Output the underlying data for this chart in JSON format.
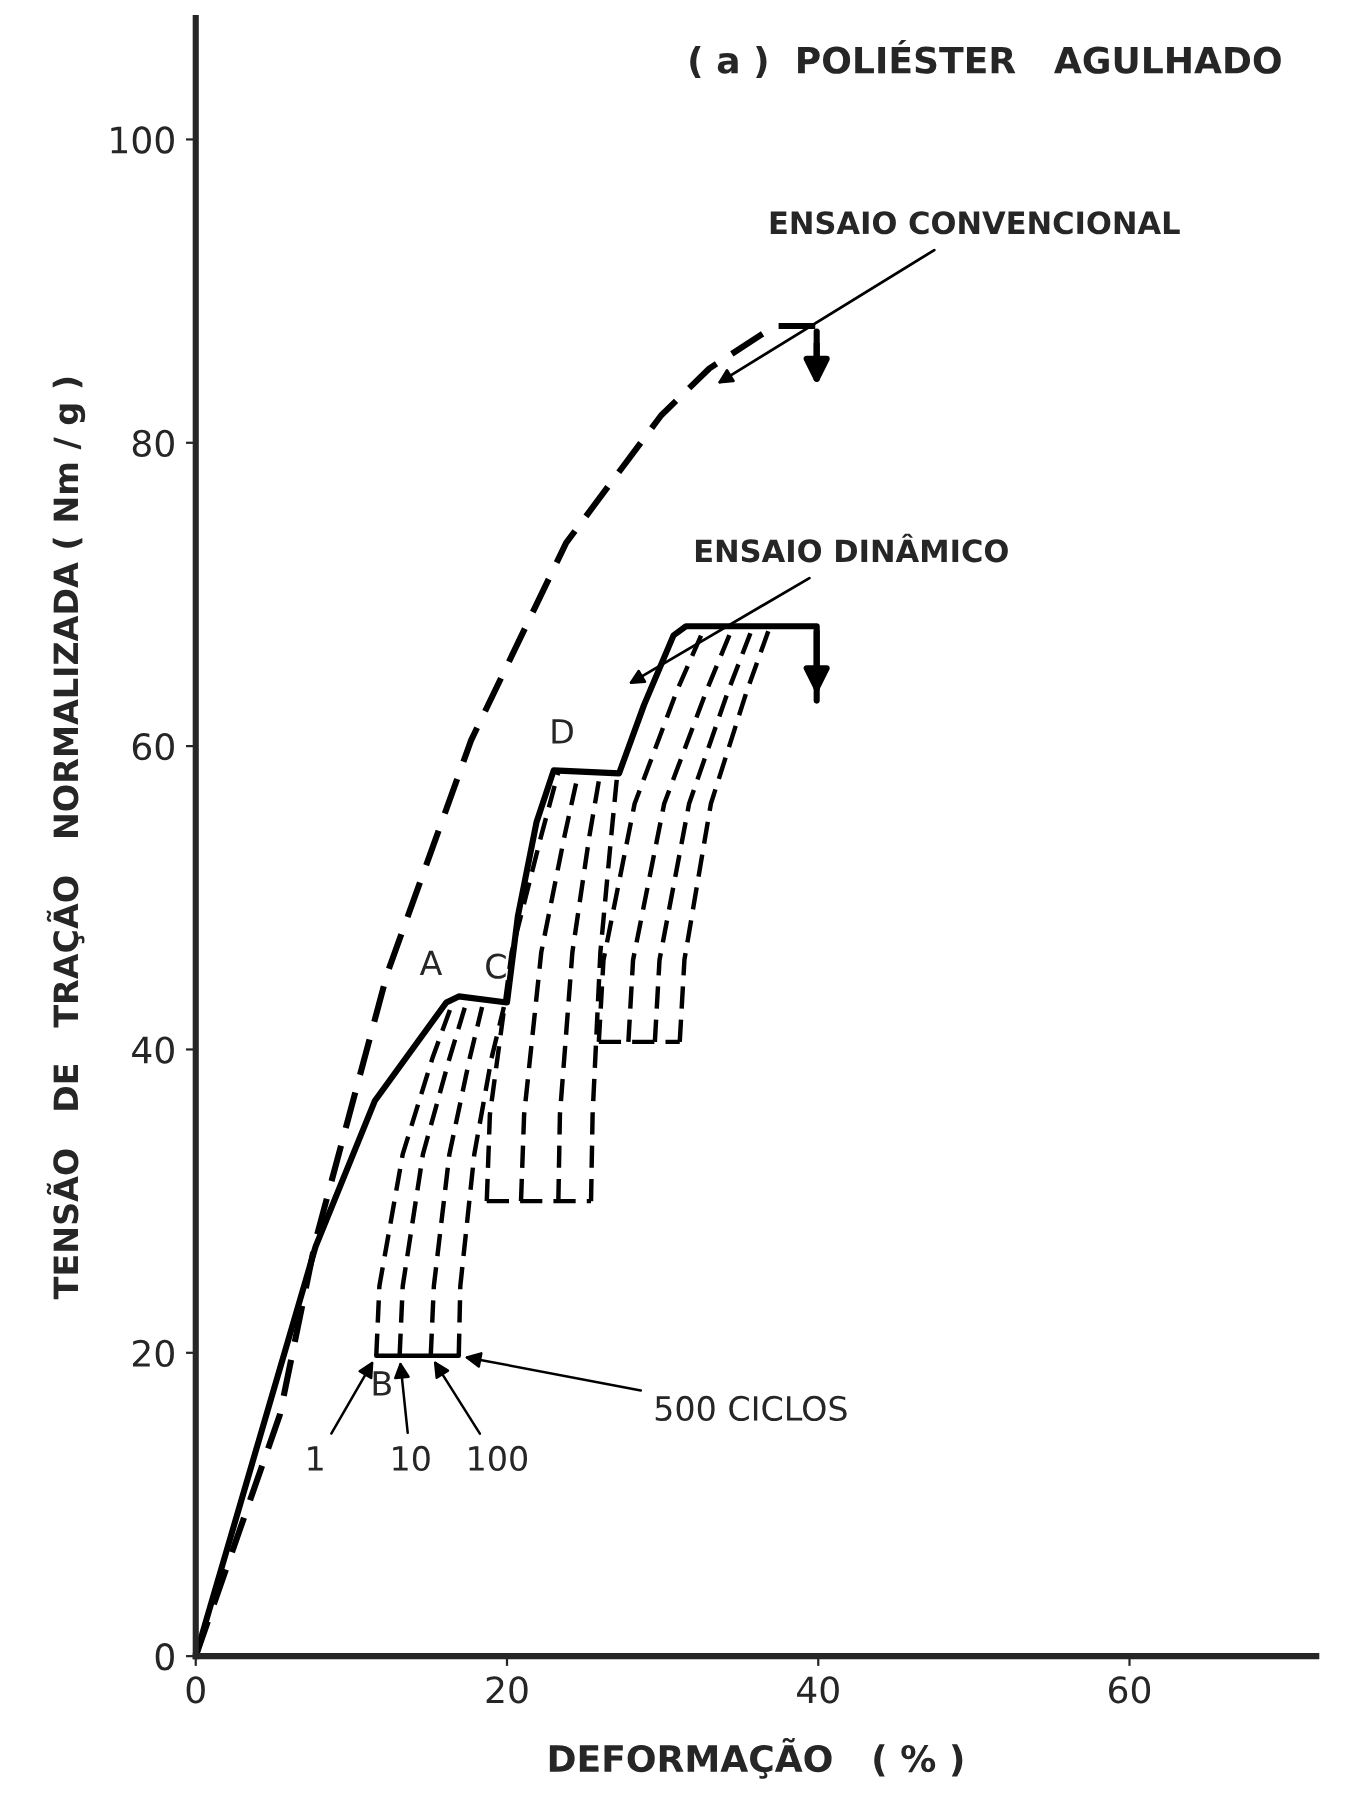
{
  "chart_data": {
    "type": "line",
    "title": "( a )  POLIÉSTER   AGULHADO",
    "xlabel": "DEFORMAÇÃO   ( % )",
    "ylabel": "TENSÃO   DE   TRAÇÃO   NORMALIZADA ( Nm / g )",
    "xlim": [
      0,
      72
    ],
    "ylim": [
      0,
      108
    ],
    "xticks": [
      0,
      20,
      40,
      60
    ],
    "yticks": [
      0,
      20,
      40,
      60,
      80,
      100
    ],
    "grid": false,
    "color": "#000000",
    "series": [
      {
        "name": "ENSAIO CONVENCIONAL",
        "line_style": "dashed",
        "x": [
          0,
          5.4,
          7.7,
          12.3,
          17.7,
          23.8,
          29.9,
          33,
          37.2,
          39.9,
          39.9
        ],
        "values": [
          0,
          15.9,
          27.4,
          45,
          60.4,
          73.4,
          81.8,
          84.9,
          87.7,
          87.7,
          83.4
        ]
      },
      {
        "name": "ENSAIO DINÂMICO",
        "line_style": "solid",
        "x": [
          0,
          7.7,
          11.5,
          16.1,
          16.9,
          20.0,
          20.7,
          21.9,
          23.0,
          27.2,
          28.8,
          30.7,
          31.5,
          39.9,
          39.9
        ],
        "values": [
          0,
          27,
          36.6,
          43.1,
          43.5,
          43.1,
          48.8,
          55,
          58.4,
          58.2,
          62.7,
          67.3,
          67.9,
          67.9,
          63
        ]
      },
      {
        "line_style": "dashed",
        "x": [
          11.6,
          11.8,
          13.3,
          15.2,
          16.4
        ],
        "values": [
          19.8,
          24.4,
          33.1,
          39.4,
          42.8
        ]
      },
      {
        "line_style": "dashed",
        "x": [
          13.1,
          13.3,
          14.6,
          16.3,
          17.3
        ],
        "values": [
          19.8,
          24.4,
          33.1,
          39.4,
          42.8
        ]
      },
      {
        "line_style": "dashed",
        "x": [
          15.1,
          15.3,
          16.3,
          17.6,
          18.4
        ],
        "values": [
          19.8,
          24.4,
          33.1,
          39.4,
          42.8
        ]
      },
      {
        "line_style": "dashed",
        "x": [
          16.9,
          17.0,
          17.9,
          19.0,
          19.8
        ],
        "values": [
          19.8,
          24.4,
          33.1,
          39.4,
          42.8
        ]
      },
      {
        "line_style": "solid",
        "x": [
          11.6,
          16.9
        ],
        "values": [
          19.8,
          19.8
        ]
      },
      {
        "line_style": "dashed",
        "x": [
          18.7,
          18.9,
          20.3,
          22.2,
          23.3
        ],
        "values": [
          30.0,
          35.7,
          46.4,
          54.1,
          58.3
        ]
      },
      {
        "line_style": "dashed",
        "x": [
          20.9,
          21.1,
          22.2,
          23.7,
          24.6
        ],
        "values": [
          30.0,
          35.7,
          46.4,
          54.1,
          58.3
        ]
      },
      {
        "line_style": "dashed",
        "x": [
          23.3,
          23.4,
          24.2,
          25.3,
          26.0
        ],
        "values": [
          30.0,
          35.7,
          46.4,
          54.1,
          58.3
        ]
      },
      {
        "line_style": "dashed",
        "x": [
          25.4,
          25.5,
          26.0,
          26.7,
          27.1
        ],
        "values": [
          30.0,
          35.7,
          46.4,
          54.1,
          58.3
        ]
      },
      {
        "line_style": "dashed",
        "x": [
          18.7,
          25.4
        ],
        "values": [
          30.0,
          30.0
        ]
      },
      {
        "line_style": "dashed",
        "x": [
          25.9,
          26.2,
          28.2,
          30.9,
          32.6
        ],
        "values": [
          40.5,
          45.9,
          56.2,
          63.6,
          67.6
        ]
      },
      {
        "line_style": "dashed",
        "x": [
          27.8,
          28.1,
          30.1,
          32.8,
          34.4
        ],
        "values": [
          40.5,
          45.9,
          56.2,
          63.6,
          67.6
        ]
      },
      {
        "line_style": "dashed",
        "x": [
          29.5,
          29.8,
          31.7,
          34.2,
          35.7
        ],
        "values": [
          40.5,
          45.9,
          56.2,
          63.6,
          67.6
        ]
      },
      {
        "line_style": "dashed",
        "x": [
          31.1,
          31.4,
          33.1,
          35.4,
          36.8
        ],
        "values": [
          40.5,
          45.9,
          56.2,
          63.6,
          67.6
        ]
      },
      {
        "line_style": "dashed",
        "x": [
          25.9,
          31.1
        ],
        "values": [
          40.5,
          40.5
        ]
      }
    ],
    "annotations": [
      {
        "text": "A",
        "x": 16.9,
        "y": 43.5
      },
      {
        "text": "C",
        "x": 20.0,
        "y": 43.1
      },
      {
        "text": "D",
        "x": 23.0,
        "y": 58.4
      },
      {
        "text": "B",
        "x": 11.6,
        "y": 19.8
      },
      {
        "text": "1",
        "x": 11.6,
        "y": 19.8
      },
      {
        "text": "10",
        "x": 13.1,
        "y": 19.8
      },
      {
        "text": "100",
        "x": 15.1,
        "y": 19.8
      },
      {
        "text": "500 CICLOS",
        "x": 16.9,
        "y": 19.8
      }
    ]
  }
}
